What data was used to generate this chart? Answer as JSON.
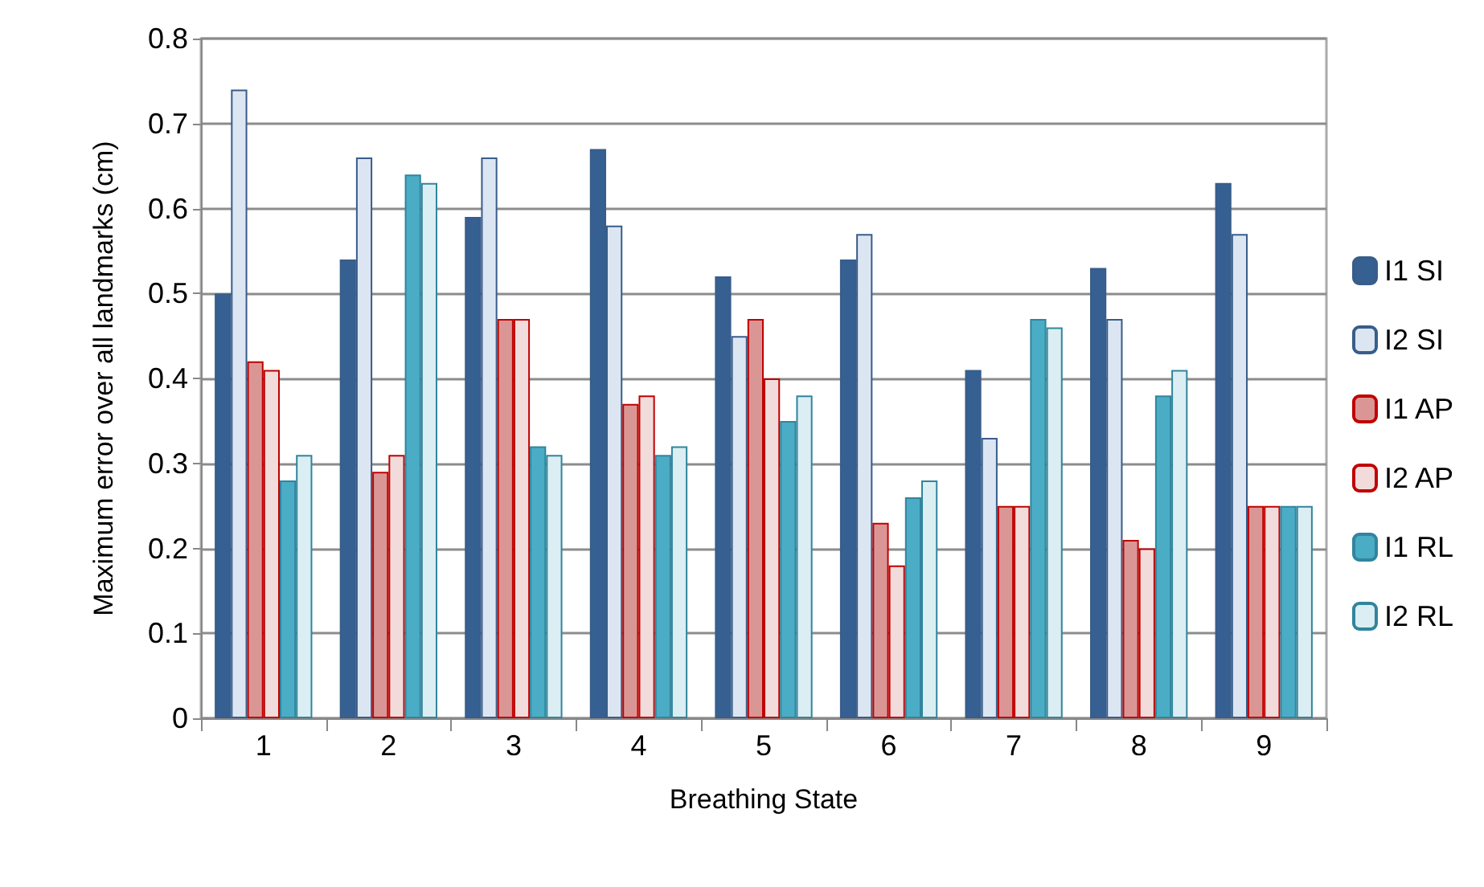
{
  "chart_data": {
    "type": "bar",
    "xlabel": "Breathing State",
    "ylabel": "Maximum error over all landmarks (cm)",
    "categories": [
      "1",
      "2",
      "3",
      "4",
      "5",
      "6",
      "7",
      "8",
      "9"
    ],
    "series": [
      {
        "name": "I1 SI",
        "color": "#376092",
        "values": [
          0.5,
          0.54,
          0.59,
          0.67,
          0.52,
          0.54,
          0.41,
          0.53,
          0.63
        ]
      },
      {
        "name": "I2 SI",
        "color": "#dce6f2",
        "values": [
          0.74,
          0.66,
          0.66,
          0.58,
          0.45,
          0.57,
          0.33,
          0.47,
          0.57
        ]
      },
      {
        "name": "I1 AP",
        "color": "#da9694",
        "values": [
          0.42,
          0.29,
          0.47,
          0.37,
          0.47,
          0.23,
          0.25,
          0.21,
          0.25
        ]
      },
      {
        "name": "I2 AP",
        "color": "#f2dcdb",
        "values": [
          0.41,
          0.31,
          0.47,
          0.38,
          0.4,
          0.18,
          0.25,
          0.2,
          0.25
        ]
      },
      {
        "name": "I1 RL",
        "color": "#4bacc6",
        "values": [
          0.28,
          0.64,
          0.32,
          0.31,
          0.35,
          0.26,
          0.47,
          0.38,
          0.25
        ]
      },
      {
        "name": "I2 RL",
        "color": "#daeef3",
        "values": [
          0.31,
          0.63,
          0.31,
          0.32,
          0.38,
          0.28,
          0.46,
          0.41,
          0.25
        ]
      }
    ],
    "ylim": [
      0,
      0.8
    ],
    "yticks": [
      0,
      0.1,
      0.2,
      0.3,
      0.4,
      0.5,
      0.6,
      0.7,
      0.8
    ],
    "grid": "y",
    "legend": "right"
  }
}
